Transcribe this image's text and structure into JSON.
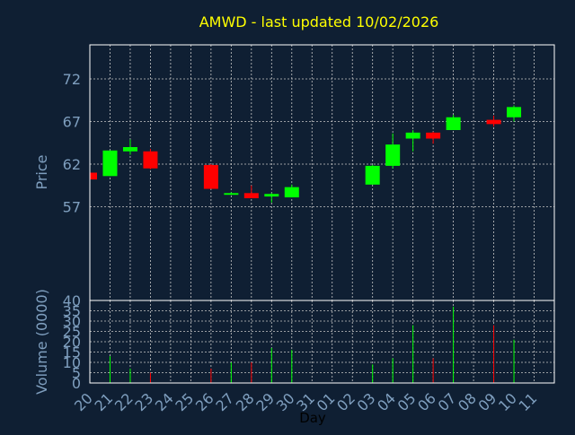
{
  "colors": {
    "background": "#0f1f33",
    "plot_bg": "#0f1f33",
    "axis": "#ffffff",
    "grid": "#c8c8c8",
    "title": "#ffff00",
    "label": "#7f9fbf",
    "up": "#00ff00",
    "down": "#ff0000",
    "xlabel": "#000000"
  },
  "chart_data": {
    "type": "candlestick",
    "title": "AMWD - last updated 10/02/2026",
    "xlabel": "Day",
    "categories": [
      "20",
      "21",
      "22",
      "23",
      "24",
      "25",
      "26",
      "27",
      "28",
      "29",
      "30",
      "31",
      "01",
      "02",
      "03",
      "04",
      "05",
      "06",
      "07",
      "08",
      "09",
      "10",
      "11"
    ],
    "price": {
      "ylabel": "Price",
      "ylim": [
        46,
        76
      ],
      "yticks": [
        57,
        62,
        67,
        72
      ],
      "candles": [
        {
          "x": 0,
          "open": 61.0,
          "high": 61.0,
          "low": 60.2,
          "close": 60.2
        },
        {
          "x": 1,
          "open": 60.6,
          "high": 63.6,
          "low": 60.6,
          "close": 63.6
        },
        {
          "x": 2,
          "open": 63.5,
          "high": 64.9,
          "low": 63.1,
          "close": 64.0
        },
        {
          "x": 3,
          "open": 63.5,
          "high": 63.8,
          "low": 61.4,
          "close": 61.5
        },
        {
          "x": 6,
          "open": 61.9,
          "high": 62.0,
          "low": 59.1,
          "close": 59.1
        },
        {
          "x": 7,
          "open": 58.4,
          "high": 58.7,
          "low": 58.4,
          "close": 58.6
        },
        {
          "x": 8,
          "open": 58.6,
          "high": 59.5,
          "low": 58.0,
          "close": 58.0
        },
        {
          "x": 9,
          "open": 58.2,
          "high": 58.6,
          "low": 57.5,
          "close": 58.5
        },
        {
          "x": 10,
          "open": 58.1,
          "high": 59.6,
          "low": 58.1,
          "close": 59.3
        },
        {
          "x": 14,
          "open": 59.6,
          "high": 61.9,
          "low": 59.6,
          "close": 61.8
        },
        {
          "x": 15,
          "open": 61.8,
          "high": 65.6,
          "low": 61.5,
          "close": 64.3
        },
        {
          "x": 16,
          "open": 65.0,
          "high": 66.0,
          "low": 63.5,
          "close": 65.7
        },
        {
          "x": 17,
          "open": 65.7,
          "high": 65.8,
          "low": 64.4,
          "close": 65.0
        },
        {
          "x": 18,
          "open": 66.0,
          "high": 67.8,
          "low": 66.0,
          "close": 67.5
        },
        {
          "x": 20,
          "open": 67.2,
          "high": 67.7,
          "low": 66.4,
          "close": 66.7
        },
        {
          "x": 21,
          "open": 67.5,
          "high": 68.9,
          "low": 67.0,
          "close": 68.7
        }
      ]
    },
    "volume": {
      "ylabel": "Volume (0000)",
      "ylim": [
        0,
        40
      ],
      "yticks": [
        0,
        5,
        10,
        15,
        20,
        25,
        30,
        35,
        40
      ],
      "bars": [
        {
          "x": 1,
          "value": 13,
          "dir": "up"
        },
        {
          "x": 2,
          "value": 7,
          "dir": "up"
        },
        {
          "x": 3,
          "value": 5,
          "dir": "down"
        },
        {
          "x": 6,
          "value": 7,
          "dir": "down"
        },
        {
          "x": 7,
          "value": 10,
          "dir": "up"
        },
        {
          "x": 8,
          "value": 10,
          "dir": "down"
        },
        {
          "x": 9,
          "value": 17,
          "dir": "up"
        },
        {
          "x": 10,
          "value": 16,
          "dir": "up"
        },
        {
          "x": 14,
          "value": 9,
          "dir": "up"
        },
        {
          "x": 15,
          "value": 12,
          "dir": "up"
        },
        {
          "x": 16,
          "value": 28,
          "dir": "up"
        },
        {
          "x": 17,
          "value": 12,
          "dir": "down"
        },
        {
          "x": 18,
          "value": 37,
          "dir": "up"
        },
        {
          "x": 20,
          "value": 28,
          "dir": "down"
        },
        {
          "x": 21,
          "value": 21,
          "dir": "up"
        }
      ]
    }
  }
}
